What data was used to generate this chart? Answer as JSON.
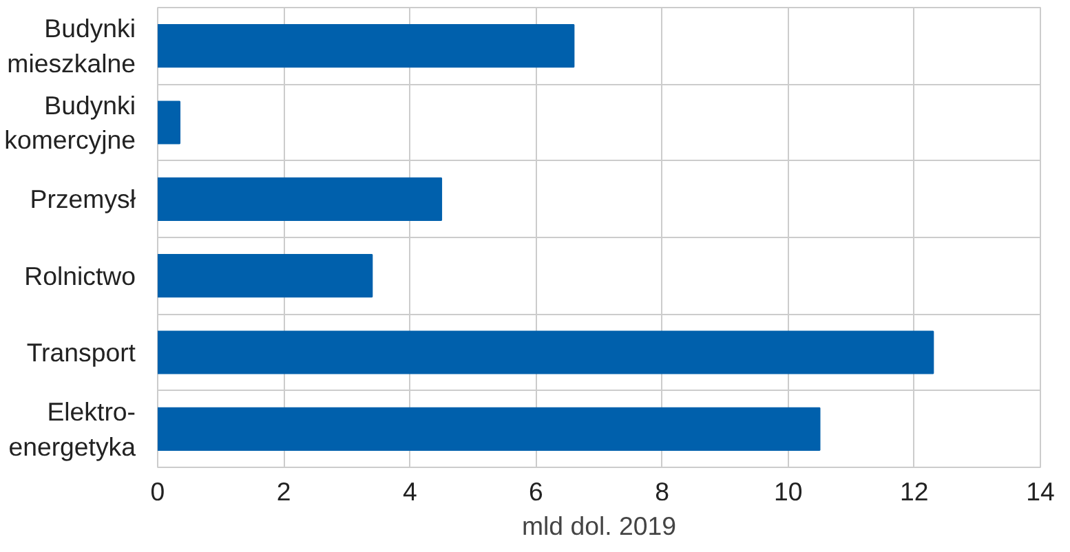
{
  "chart_data": {
    "type": "bar",
    "orientation": "horizontal",
    "xlabel": "mld dol. 2019",
    "categories": [
      "Budynki\nmieszkalne",
      "Budynki\nkomercyjne",
      "Przemysł",
      "Rolnictwo",
      "Transport",
      "Elektro-\nenergetyka"
    ],
    "values": [
      6.6,
      0.35,
      4.5,
      3.4,
      12.3,
      10.5
    ],
    "color": "#0060ac",
    "xlim": [
      0,
      14
    ],
    "xticks": [
      0,
      2,
      4,
      6,
      8,
      10,
      12,
      14
    ],
    "grid": true
  }
}
